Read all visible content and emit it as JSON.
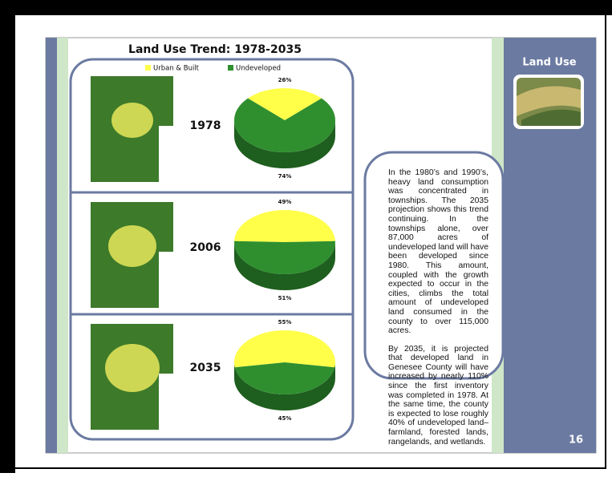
{
  "title": "Land Use Trend: 1978-2035",
  "sidebar": {
    "title": "Land Use",
    "page_number": "16"
  },
  "body": {
    "paragraphs": [
      "In the 1980’s and 1990’s, heavy land consumption was concentrated in townships. The 2035 projection shows this trend continuing. In the townships alone, over 87,000 acres of undeveloped land will have been developed since 1980. This amount, coupled with the growth expected to occur in the cities, climbs the total amount of undeveloped land consumed in the county to over 115,000 acres.",
      "By 2035, it is projected that developed land in Genesee County will have increased by nearly 110% since the first inventory was completed in 1978. At the same time, the county is expected to lose roughly 40% of undeveloped land–farmland, forested lands, rangelands, and wetlands."
    ]
  },
  "chart_data": [
    {
      "type": "pie",
      "title": "1978",
      "categories": [
        "Urban & Built",
        "Undeveloped"
      ],
      "values": [
        26,
        74
      ],
      "value_labels": [
        "26%",
        "74%"
      ],
      "colors": [
        "#ffff4a",
        "#2f8f2f"
      ]
    },
    {
      "type": "pie",
      "title": "2006",
      "categories": [
        "Urban & Built",
        "Undeveloped"
      ],
      "values": [
        49,
        51
      ],
      "value_labels": [
        "49%",
        "51%"
      ],
      "colors": [
        "#ffff4a",
        "#2f8f2f"
      ]
    },
    {
      "type": "pie",
      "title": "2035",
      "categories": [
        "Urban & Built",
        "Undeveloped"
      ],
      "values": [
        55,
        45
      ],
      "value_labels": [
        "55%",
        "45%"
      ],
      "colors": [
        "#ffff4a",
        "#2f8f2f"
      ]
    }
  ]
}
